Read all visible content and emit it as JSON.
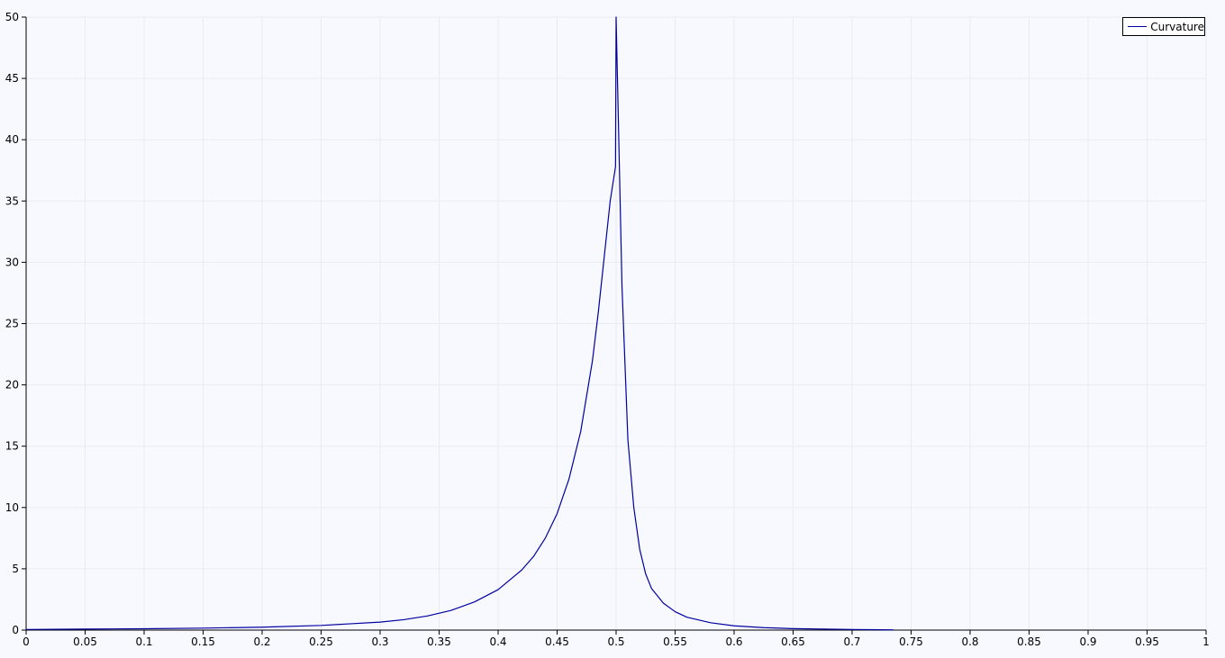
{
  "chart_data": {
    "type": "line",
    "title": "",
    "xlabel": "",
    "ylabel": "",
    "xlim": [
      0,
      1
    ],
    "ylim": [
      0,
      50
    ],
    "grid": true,
    "legend_position": "top-right",
    "x_ticks": [
      "0",
      "0.05",
      "0.1",
      "0.15",
      "0.2",
      "0.25",
      "0.3",
      "0.35",
      "0.4",
      "0.45",
      "0.5",
      "0.55",
      "0.6",
      "0.65",
      "0.7",
      "0.75",
      "0.8",
      "0.85",
      "0.9",
      "0.95",
      "1"
    ],
    "y_ticks": [
      "0",
      "5",
      "10",
      "15",
      "20",
      "25",
      "30",
      "35",
      "40",
      "45",
      "50"
    ],
    "series": [
      {
        "name": "Curvature",
        "color": "#0000a0",
        "points": [
          [
            0.0,
            0.05
          ],
          [
            0.05,
            0.08
          ],
          [
            0.1,
            0.11
          ],
          [
            0.15,
            0.16
          ],
          [
            0.2,
            0.24
          ],
          [
            0.25,
            0.38
          ],
          [
            0.3,
            0.65
          ],
          [
            0.32,
            0.85
          ],
          [
            0.34,
            1.15
          ],
          [
            0.36,
            1.6
          ],
          [
            0.38,
            2.3
          ],
          [
            0.4,
            3.3
          ],
          [
            0.42,
            4.9
          ],
          [
            0.43,
            6.0
          ],
          [
            0.44,
            7.5
          ],
          [
            0.45,
            9.5
          ],
          [
            0.46,
            12.3
          ],
          [
            0.47,
            16.2
          ],
          [
            0.48,
            22.0
          ],
          [
            0.485,
            26.0
          ],
          [
            0.49,
            30.5
          ],
          [
            0.495,
            35.0
          ],
          [
            0.4995,
            37.8
          ],
          [
            0.5,
            50.0
          ],
          [
            0.505,
            28.0
          ],
          [
            0.51,
            15.5
          ],
          [
            0.515,
            10.0
          ],
          [
            0.52,
            6.6
          ],
          [
            0.525,
            4.6
          ],
          [
            0.53,
            3.4
          ],
          [
            0.54,
            2.2
          ],
          [
            0.55,
            1.5
          ],
          [
            0.56,
            1.05
          ],
          [
            0.58,
            0.6
          ],
          [
            0.6,
            0.35
          ],
          [
            0.625,
            0.2
          ],
          [
            0.65,
            0.12
          ],
          [
            0.7,
            0.05
          ],
          [
            0.735,
            0.02
          ]
        ]
      }
    ]
  },
  "legend": {
    "label": "Curvature"
  }
}
